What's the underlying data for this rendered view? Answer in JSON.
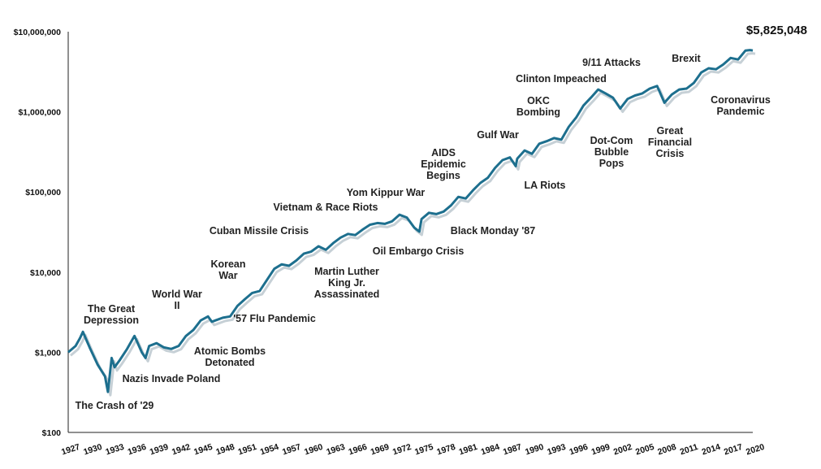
{
  "chart_data": {
    "type": "line",
    "scale": "log",
    "ylim": [
      100,
      10000000
    ],
    "xlim": [
      1927,
      2020
    ],
    "colors": {
      "line": "#1d6f8e",
      "shadow": "#b8c4cc",
      "axis": "#222222"
    },
    "y_ticks": [
      {
        "value": 100,
        "label": "$100"
      },
      {
        "value": 1000,
        "label": "$1,000"
      },
      {
        "value": 10000,
        "label": "$10,000"
      },
      {
        "value": 100000,
        "label": "$100,000"
      },
      {
        "value": 1000000,
        "label": "$1,000,000"
      },
      {
        "value": 10000000,
        "label": "$10,000,000"
      }
    ],
    "x_ticks": [
      1927,
      1930,
      1933,
      1936,
      1939,
      1942,
      1945,
      1948,
      1951,
      1954,
      1957,
      1960,
      1963,
      1966,
      1969,
      1972,
      1975,
      1978,
      1981,
      1984,
      1987,
      1990,
      1993,
      1996,
      1999,
      2002,
      2005,
      2008,
      2011,
      2014,
      2017,
      2020
    ],
    "final_value_label": "$5,825,048",
    "series": [
      {
        "x": [
          1927,
          1928,
          1928.6,
          1929,
          1929.5,
          1930,
          1931,
          1932,
          1932.4,
          1932.9,
          1933.3,
          1934,
          1935,
          1936,
          1937,
          1937.5,
          1938,
          1939,
          1940,
          1941,
          1942,
          1943,
          1944,
          1945,
          1946,
          1946.5,
          1947,
          1948,
          1949,
          1950,
          1951,
          1952,
          1953,
          1954,
          1955,
          1956,
          1957,
          1958,
          1959,
          1960,
          1961,
          1962,
          1963,
          1964,
          1965,
          1966,
          1967,
          1968,
          1969,
          1970,
          1971,
          1972,
          1973,
          1974,
          1974.7,
          1975,
          1976,
          1977,
          1978,
          1979,
          1980,
          1981,
          1982,
          1983,
          1984,
          1985,
          1986,
          1987,
          1987.8,
          1988,
          1989,
          1990,
          1991,
          1992,
          1993,
          1994,
          1995,
          1996,
          1997,
          1998,
          1999,
          2000,
          2001,
          2002,
          2003,
          2004,
          2005,
          2006,
          2007,
          2008,
          2009,
          2010,
          2011,
          2012,
          2013,
          2014,
          2015,
          2016,
          2017,
          2018,
          2019,
          2019.6,
          2020
        ],
        "y": [
          1000,
          1200,
          1500,
          1800,
          1400,
          1100,
          700,
          500,
          320,
          850,
          650,
          800,
          1100,
          1600,
          1000,
          850,
          1200,
          1300,
          1150,
          1100,
          1200,
          1600,
          1900,
          2500,
          2800,
          2400,
          2500,
          2700,
          2800,
          3800,
          4600,
          5500,
          5800,
          8000,
          11000,
          12500,
          12000,
          14000,
          17000,
          18000,
          21000,
          19000,
          23000,
          27000,
          30000,
          29000,
          34000,
          39000,
          41000,
          40000,
          43000,
          52000,
          48000,
          36000,
          32000,
          46000,
          55000,
          53000,
          57000,
          68000,
          87000,
          83000,
          105000,
          130000,
          150000,
          200000,
          250000,
          270000,
          210000,
          260000,
          330000,
          300000,
          400000,
          430000,
          470000,
          450000,
          650000,
          850000,
          1200000,
          1500000,
          1900000,
          1700000,
          1500000,
          1100000,
          1450000,
          1600000,
          1700000,
          1950000,
          2100000,
          1300000,
          1650000,
          1900000,
          1950000,
          2300000,
          3100000,
          3500000,
          3400000,
          3900000,
          4700000,
          4500000,
          5800000,
          5900000,
          5825048
        ]
      }
    ],
    "annotations": [
      {
        "key": "crash29",
        "lines": [
          "The Crash of '29"
        ]
      },
      {
        "key": "depression",
        "lines": [
          "The Great",
          "Depression"
        ]
      },
      {
        "key": "poland",
        "lines": [
          "Nazis Invade Poland"
        ]
      },
      {
        "key": "ww2",
        "lines": [
          "World War",
          "II"
        ]
      },
      {
        "key": "atomic",
        "lines": [
          "Atomic Bombs",
          "Detonated"
        ]
      },
      {
        "key": "korean",
        "lines": [
          "Korean",
          "War"
        ]
      },
      {
        "key": "flu57",
        "lines": [
          "'57 Flu Pandemic"
        ]
      },
      {
        "key": "cuban",
        "lines": [
          "Cuban Missile Crisis"
        ]
      },
      {
        "key": "vietnam",
        "lines": [
          "Vietnam & Race Riots"
        ]
      },
      {
        "key": "mlk",
        "lines": [
          "Martin Luther",
          "King Jr.",
          "Assassinated"
        ]
      },
      {
        "key": "yomkippur",
        "lines": [
          "Yom Kippur War"
        ]
      },
      {
        "key": "oil",
        "lines": [
          "Oil Embargo Crisis"
        ]
      },
      {
        "key": "aids",
        "lines": [
          "AIDS",
          "Epidemic",
          "Begins"
        ]
      },
      {
        "key": "blackmonday",
        "lines": [
          "Black Monday '87"
        ]
      },
      {
        "key": "gulf",
        "lines": [
          "Gulf War"
        ]
      },
      {
        "key": "okc",
        "lines": [
          "OKC",
          "Bombing"
        ]
      },
      {
        "key": "lariots",
        "lines": [
          "LA Riots"
        ]
      },
      {
        "key": "clinton",
        "lines": [
          "Clinton Impeached"
        ]
      },
      {
        "key": "nineeleven",
        "lines": [
          "9/11 Attacks"
        ]
      },
      {
        "key": "dotcom",
        "lines": [
          "Dot-Com",
          "Bubble",
          "Pops"
        ]
      },
      {
        "key": "gfc",
        "lines": [
          "Great",
          "Financial",
          "Crisis"
        ]
      },
      {
        "key": "brexit",
        "lines": [
          "Brexit"
        ]
      },
      {
        "key": "covid",
        "lines": [
          "Coronavirus",
          "Pandemic"
        ]
      }
    ]
  }
}
